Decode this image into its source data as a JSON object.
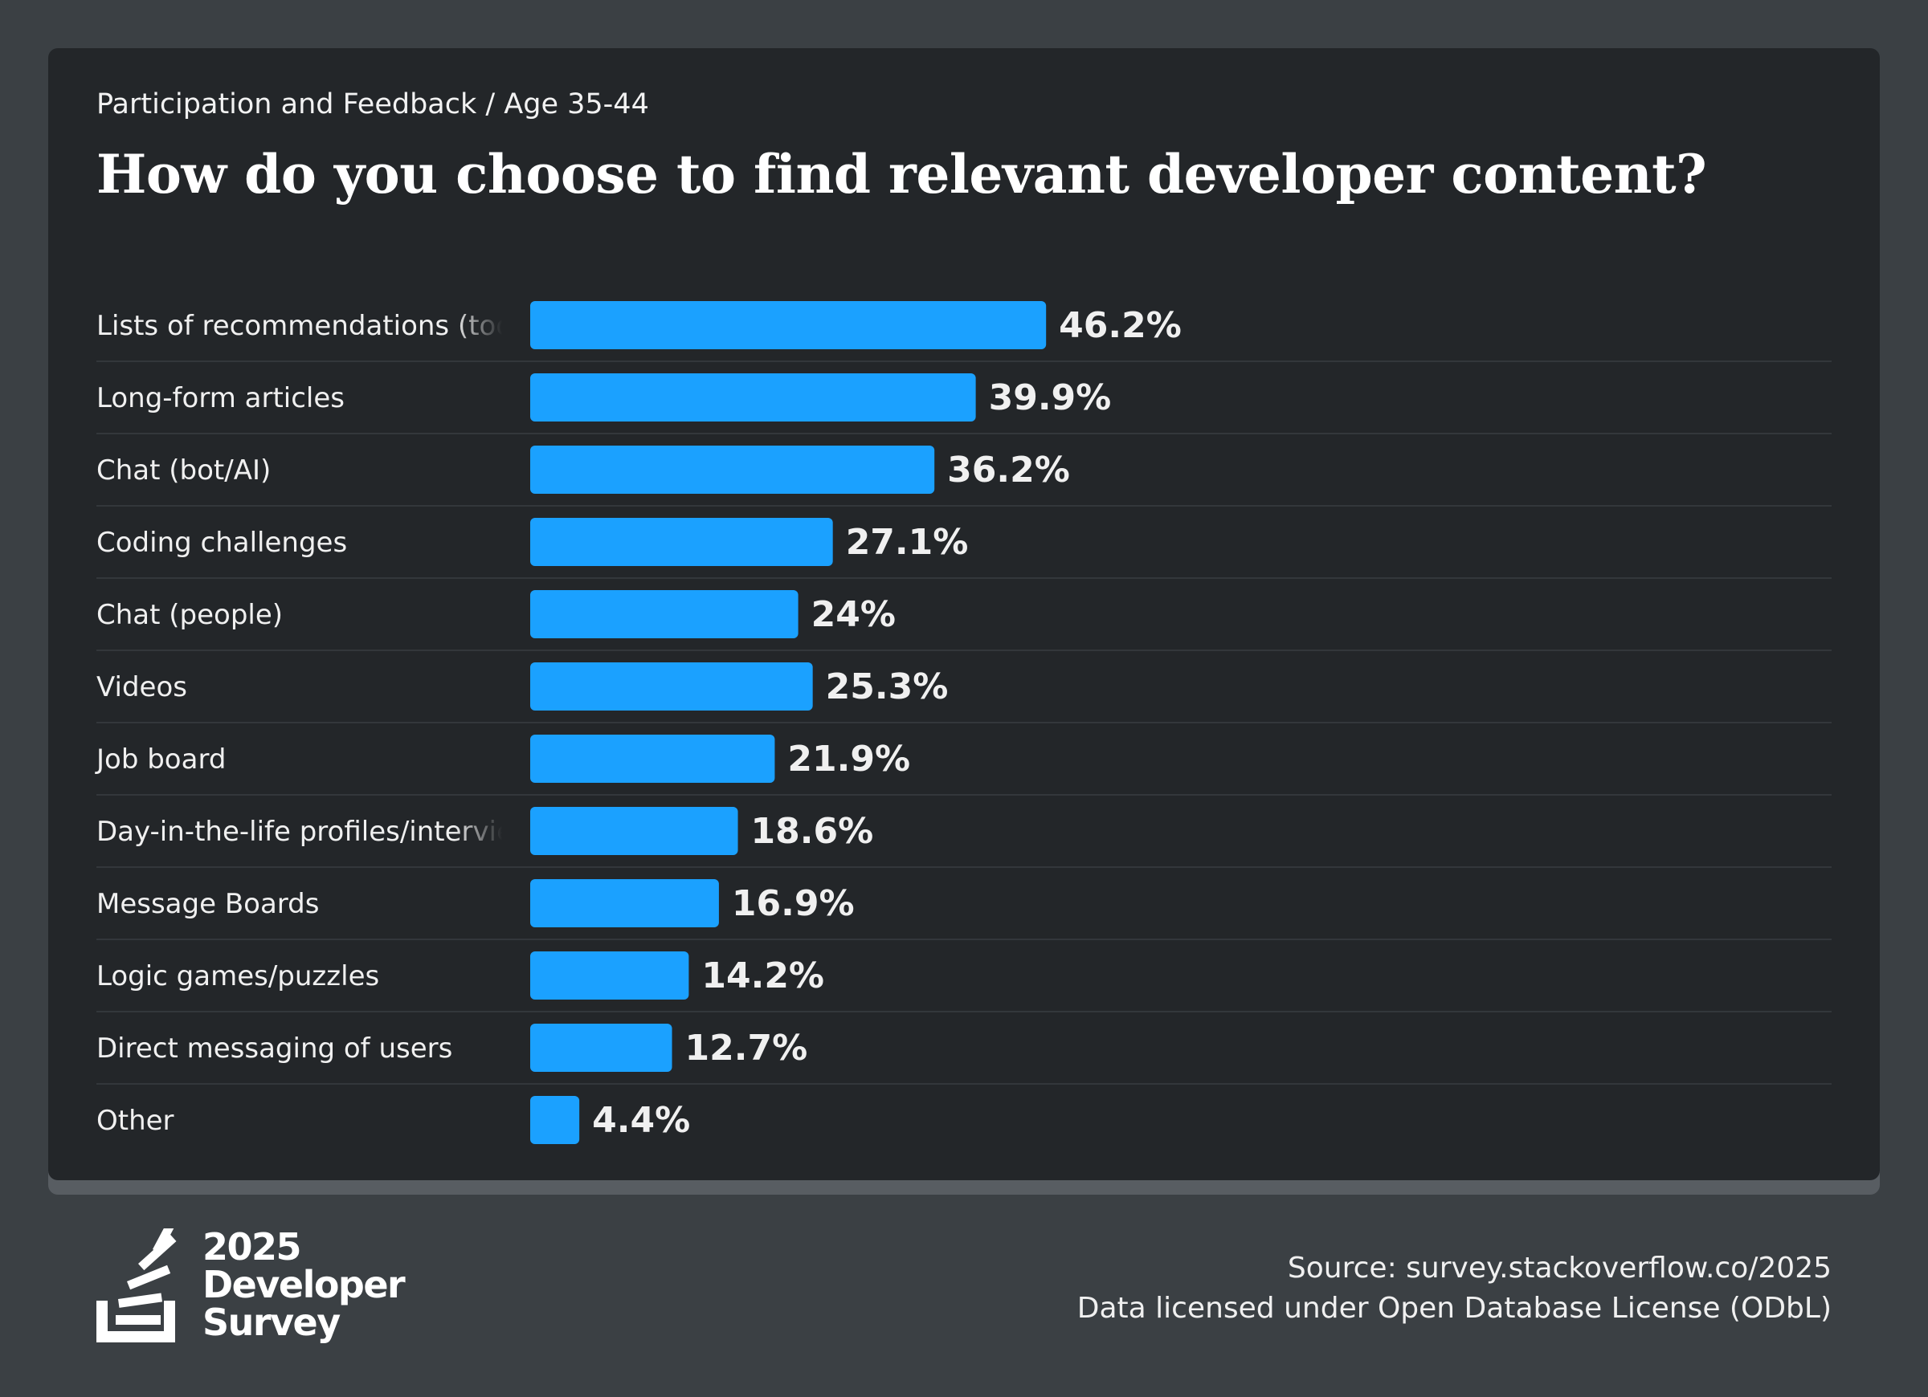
{
  "header": {
    "breadcrumb": "Participation and Feedback / Age 35-44",
    "title": "How do you choose to find relevant developer content?"
  },
  "colors": {
    "page_background": "#3b4044",
    "card_background": "#232629",
    "bar": "#1ba1ff",
    "text": "#f0f0f0",
    "row_divider": "#33373b"
  },
  "chart_data": {
    "type": "bar",
    "orientation": "horizontal",
    "categories": [
      "Lists of recommendations (tools, resources, etc.)",
      "Long-form articles",
      "Chat (bot/AI)",
      "Coding challenges",
      "Chat (people)",
      "Videos",
      "Job board",
      "Day-in-the-life profiles/interviews",
      "Message Boards",
      "Logic games/puzzles",
      "Direct messaging of users",
      "Other"
    ],
    "values": [
      46.2,
      39.9,
      36.2,
      27.1,
      24,
      25.3,
      21.9,
      18.6,
      16.9,
      14.2,
      12.7,
      4.4
    ],
    "value_labels": [
      "46.2%",
      "39.9%",
      "36.2%",
      "27.1%",
      "24%",
      "25.3%",
      "21.9%",
      "18.6%",
      "16.9%",
      "14.2%",
      "12.7%",
      "4.4%"
    ],
    "xlim": [
      0,
      100
    ],
    "unit": "%",
    "grid": false,
    "legend": "none"
  },
  "footer": {
    "logo_year": "2025",
    "logo_line1": "Developer",
    "logo_line2": "Survey",
    "source": "Source: survey.stackoverflow.co/2025",
    "license": "Data licensed under Open Database License (ODbL)"
  }
}
